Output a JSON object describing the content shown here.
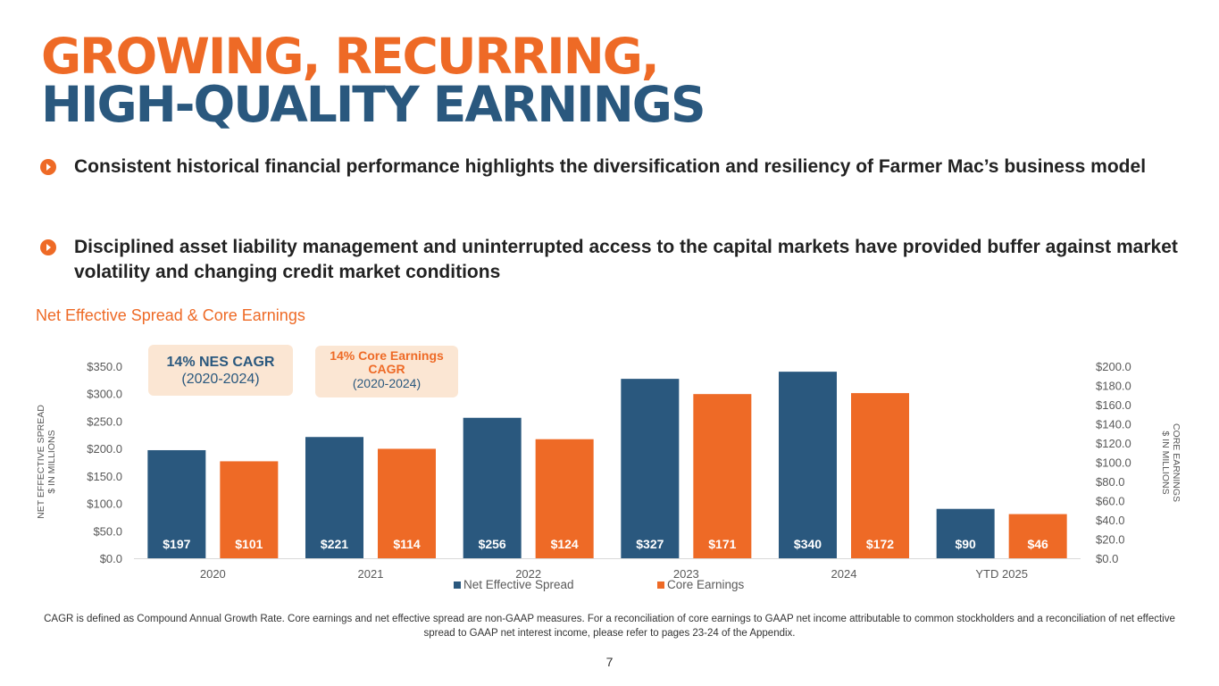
{
  "title": {
    "line1": "GROWING, RECURRING,",
    "line2": "HIGH-QUALITY EARNINGS"
  },
  "bullets": [
    "Consistent historical financial performance highlights the diversification and resiliency of Farmer Mac’s business model",
    "Disciplined asset liability management and uninterrupted access to the capital markets have provided buffer against market volatility and changing credit market conditions"
  ],
  "chart_title": "Net Effective Spread & Core Earnings",
  "callouts": {
    "nes": {
      "heading": "14% NES CAGR",
      "sub": "(2020-2024)"
    },
    "core": {
      "heading": "14% Core Earnings CAGR",
      "sub": "(2020-2024)"
    }
  },
  "chart_data": {
    "type": "bar",
    "title": "Net Effective Spread & Core Earnings",
    "categories": [
      "2020",
      "2021",
      "2022",
      "2023",
      "2024",
      "YTD 2025"
    ],
    "series": [
      {
        "name": "Net Effective Spread",
        "axis": "left",
        "color": "#2a587e",
        "values": [
          197,
          221,
          256,
          327,
          340,
          90
        ],
        "labels": [
          "$197",
          "$221",
          "$256",
          "$327",
          "$340",
          "$90"
        ]
      },
      {
        "name": "Core Earnings",
        "axis": "right",
        "color": "#ee6a26",
        "values": [
          101,
          114,
          124,
          171,
          172,
          46
        ],
        "labels": [
          "$101",
          "$114",
          "$124",
          "$171",
          "$172",
          "$46"
        ]
      }
    ],
    "left_axis": {
      "label_line1": "NET EFFECTIVE SPREAD",
      "label_line2": "$ IN MILLIONS",
      "min": 0,
      "max": 350,
      "ticks": [
        0,
        50,
        100,
        150,
        200,
        250,
        300,
        350
      ],
      "tick_labels": [
        "$0.0",
        "$50.0",
        "$100.0",
        "$150.0",
        "$200.0",
        "$250.0",
        "$300.0",
        "$350.0"
      ]
    },
    "right_axis": {
      "label_line1": "CORE EARNINGS",
      "label_line2": "$ IN MILLIONS",
      "min": 0,
      "max": 200,
      "ticks": [
        0,
        20,
        40,
        60,
        80,
        100,
        120,
        140,
        160,
        180,
        200
      ],
      "tick_labels": [
        "$0.0",
        "$20.0",
        "$40.0",
        "$60.0",
        "$80.0",
        "$100.0",
        "$120.0",
        "$140.0",
        "$160.0",
        "$180.0",
        "$200.0"
      ]
    },
    "legend_position": "bottom-center",
    "grid": false
  },
  "footnote": "CAGR is defined as Compound Annual Growth Rate. Core earnings and net effective spread are non-GAAP measures. For a reconciliation of core earnings to GAAP net income attributable to common stockholders and a reconciliation of net effective spread to GAAP net interest income, please refer to pages 23-24 of the Appendix.",
  "page_number": "7"
}
